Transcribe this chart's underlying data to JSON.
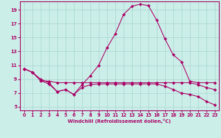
{
  "xlabel": "Windchill (Refroidissement éolien,°C)",
  "background_color": "#cceee8",
  "grid_color": "#aad8d4",
  "line_color": "#aa0066",
  "x_ticks": [
    0,
    1,
    2,
    3,
    4,
    5,
    6,
    7,
    8,
    9,
    10,
    11,
    12,
    13,
    14,
    15,
    16,
    17,
    18,
    19,
    20,
    21,
    22,
    23
  ],
  "y_ticks": [
    5,
    7,
    9,
    11,
    13,
    15,
    17,
    19
  ],
  "xlim": [
    -0.5,
    23.5
  ],
  "ylim": [
    4.5,
    20.2
  ],
  "series_main_x": [
    0,
    1,
    2,
    3,
    4,
    5,
    6,
    7,
    8,
    9,
    10,
    11,
    12,
    13,
    14,
    15,
    16,
    17,
    18,
    19,
    20,
    21,
    22,
    23
  ],
  "series_main_y": [
    10.5,
    10.0,
    9.0,
    8.5,
    7.2,
    7.5,
    6.8,
    8.2,
    9.5,
    11.0,
    13.5,
    15.5,
    18.3,
    19.5,
    19.8,
    19.6,
    17.5,
    14.8,
    12.5,
    11.5,
    8.7,
    8.5,
    8.5,
    8.5
  ],
  "series_flat_x": [
    0,
    1,
    2,
    3,
    4,
    5,
    6,
    7,
    8,
    9,
    10,
    11,
    12,
    13,
    14,
    15,
    16,
    17,
    18,
    19,
    20,
    21,
    22,
    23
  ],
  "series_flat_y": [
    10.5,
    10.0,
    8.8,
    8.7,
    8.5,
    8.5,
    8.5,
    8.5,
    8.5,
    8.5,
    8.5,
    8.5,
    8.5,
    8.5,
    8.5,
    8.5,
    8.5,
    8.5,
    8.5,
    8.5,
    8.5,
    8.2,
    7.8,
    7.5
  ],
  "series_diag_x": [
    0,
    1,
    2,
    3,
    4,
    5,
    6,
    7,
    8,
    9,
    10,
    11,
    12,
    13,
    14,
    15,
    16,
    17,
    18,
    19,
    20,
    21,
    22,
    23
  ],
  "series_diag_y": [
    10.5,
    10.0,
    8.8,
    8.3,
    7.2,
    7.5,
    6.8,
    7.8,
    8.2,
    8.3,
    8.3,
    8.3,
    8.3,
    8.3,
    8.3,
    8.3,
    8.3,
    8.0,
    7.5,
    7.0,
    6.8,
    6.5,
    5.8,
    5.3
  ]
}
